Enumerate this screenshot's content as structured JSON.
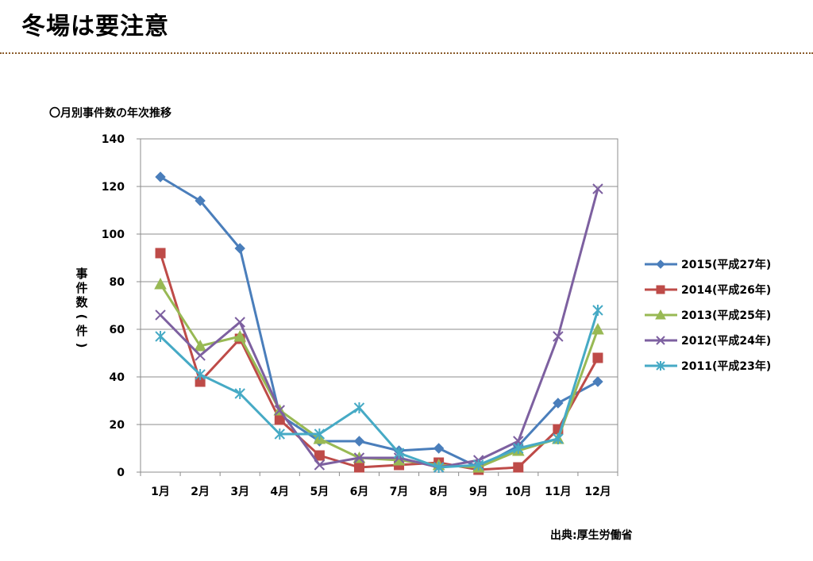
{
  "page": {
    "title": "冬場は要注意",
    "chart_caption": "〇月別事件数の年次推移",
    "source": "出典:厚生労働省"
  },
  "chart_data": {
    "type": "line",
    "title": "",
    "xlabel": "",
    "ylabel": "事件数(件)",
    "ylim": [
      0,
      140
    ],
    "yticks": [
      0,
      20,
      40,
      60,
      80,
      100,
      120,
      140
    ],
    "grid": true,
    "legend_position": "right",
    "categories": [
      "1月",
      "2月",
      "3月",
      "4月",
      "5月",
      "6月",
      "7月",
      "8月",
      "9月",
      "10月",
      "11月",
      "12月"
    ],
    "series": [
      {
        "name": "2015(平成27年)",
        "color": "#4a7ebb",
        "marker": "diamond",
        "values": [
          124,
          114,
          94,
          24,
          13,
          13,
          9,
          10,
          2,
          11,
          29,
          38
        ]
      },
      {
        "name": "2014(平成26年)",
        "color": "#be4b48",
        "marker": "square",
        "values": [
          92,
          38,
          56,
          22,
          7,
          2,
          3,
          4,
          1,
          2,
          18,
          48
        ]
      },
      {
        "name": "2013(平成25年)",
        "color": "#98b954",
        "marker": "triangle",
        "values": [
          79,
          53,
          57,
          26,
          14,
          6,
          5,
          3,
          2,
          9,
          14,
          60
        ]
      },
      {
        "name": "2012(平成24年)",
        "color": "#7d60a0",
        "marker": "x",
        "values": [
          66,
          49,
          63,
          26,
          3,
          6,
          6,
          2,
          5,
          13,
          57,
          119
        ]
      },
      {
        "name": "2011(平成23年)",
        "color": "#46aac5",
        "marker": "star",
        "values": [
          57,
          41,
          33,
          16,
          16,
          27,
          8,
          2,
          3,
          10,
          14,
          68
        ]
      }
    ]
  }
}
